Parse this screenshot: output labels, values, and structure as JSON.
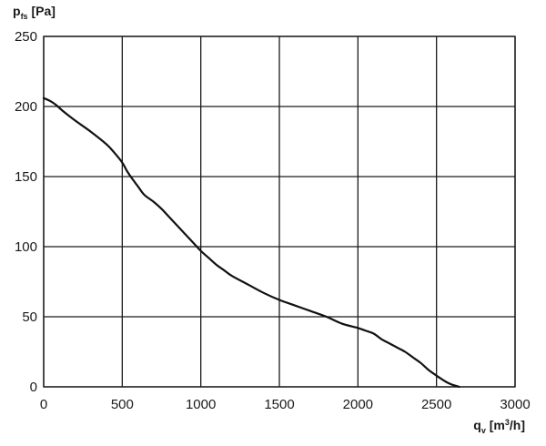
{
  "chart_data": {
    "type": "line",
    "title": "",
    "ylabel": {
      "main": "p",
      "sub": "fs",
      "unit": " [Pa]"
    },
    "xlabel": {
      "main": "q",
      "sub": "v",
      "unit_pre": " [m",
      "unit_sup": "3",
      "unit_post": "/h]"
    },
    "xlim": [
      0,
      3000
    ],
    "ylim": [
      0,
      250
    ],
    "x_ticks": [
      0,
      500,
      1000,
      1500,
      2000,
      2500,
      3000
    ],
    "y_ticks": [
      0,
      50,
      100,
      150,
      200,
      250
    ],
    "x_tick_labels": [
      "0",
      "500",
      "1000",
      "1500",
      "2000",
      "2500",
      "3000"
    ],
    "y_tick_labels": [
      "0",
      "50",
      "100",
      "150",
      "200",
      "250"
    ],
    "grid": true,
    "series": [
      {
        "color": "#111111",
        "x": [
          0,
          40,
          80,
          120,
          200,
          300,
          400,
          450,
          500,
          530,
          560,
          600,
          640,
          700,
          750,
          800,
          850,
          900,
          950,
          1000,
          1050,
          1100,
          1150,
          1200,
          1300,
          1400,
          1500,
          1600,
          1700,
          1800,
          1900,
          2000,
          2050,
          2100,
          2150,
          2200,
          2250,
          2300,
          2350,
          2400,
          2450,
          2500,
          2540,
          2570,
          2600,
          2630,
          2645
        ],
        "y": [
          206,
          204,
          201,
          197,
          190,
          182,
          173,
          167,
          160,
          154,
          149,
          143,
          137,
          132,
          127,
          121,
          115,
          109,
          103,
          97,
          92,
          87,
          83,
          79,
          73,
          67,
          62,
          58,
          54,
          50,
          45,
          42,
          40,
          38,
          34,
          31,
          28,
          25,
          21,
          17,
          12,
          8,
          5,
          3,
          1.5,
          0.5,
          0
        ]
      }
    ]
  }
}
